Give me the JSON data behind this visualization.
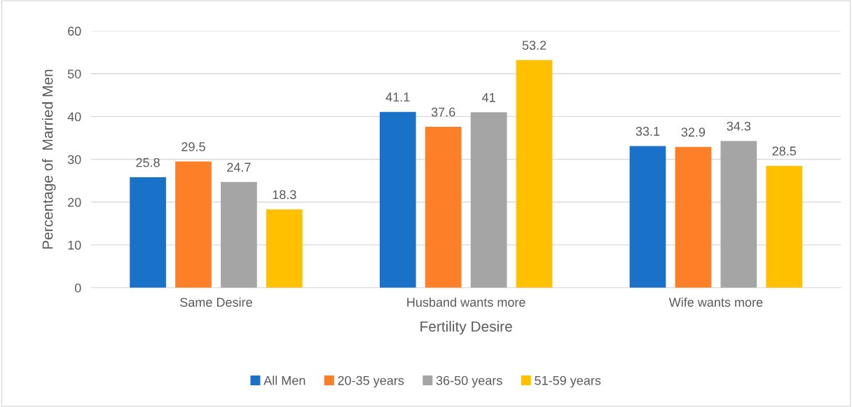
{
  "chart_data": {
    "type": "bar",
    "xlabel": "Fertility Desire",
    "ylabel": "Percentage of  Married Men",
    "categories": [
      "Same Desire",
      "Husband wants more",
      "Wife wants more"
    ],
    "series": [
      {
        "name": "All Men",
        "color": "#1a71c8",
        "values": [
          25.8,
          41.1,
          33.1
        ]
      },
      {
        "name": "20-35 years",
        "color": "#fd7f27",
        "values": [
          29.5,
          37.6,
          32.9
        ]
      },
      {
        "name": "36-50 years",
        "color": "#a5a5a5",
        "values": [
          24.7,
          41,
          34.3
        ]
      },
      {
        "name": "51-59 years",
        "color": "#ffc000",
        "values": [
          18.3,
          53.2,
          28.5
        ]
      }
    ],
    "ylim": [
      0,
      60
    ],
    "yticks": [
      0,
      10,
      20,
      30,
      40,
      50,
      60
    ],
    "grid": "y",
    "legend": "bottom",
    "data_labels": true
  }
}
